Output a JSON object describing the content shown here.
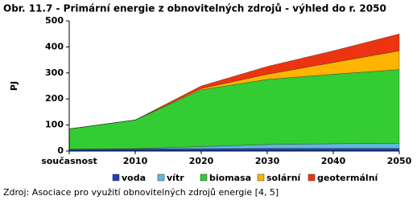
{
  "chart_data": {
    "type": "stacked-area",
    "title": "Obr. 11.7 - Primární energie z obnovitelných zdrojů - výhled do r. 2050",
    "y_label": "PJ",
    "categories": [
      "současnost",
      "2010",
      "2020",
      "2030",
      "2040",
      "2050"
    ],
    "series": [
      {
        "name": "voda",
        "color": "#1f3fbf",
        "values": [
          7,
          8,
          9,
          10,
          10,
          10
        ]
      },
      {
        "name": "vítr",
        "color": "#5fb8d8",
        "values": [
          0,
          1,
          8,
          15,
          18,
          20
        ]
      },
      {
        "name": "biomasa",
        "color": "#33cc33",
        "values": [
          78,
          110,
          218,
          250,
          267,
          283
        ]
      },
      {
        "name": "solární",
        "color": "#ffb400",
        "values": [
          0,
          0.5,
          5,
          20,
          45,
          72
        ]
      },
      {
        "name": "geotermální",
        "color": "#ee3311",
        "values": [
          0,
          0,
          10,
          30,
          45,
          65
        ]
      }
    ],
    "ylim": [
      0,
      500
    ],
    "yticks": [
      0,
      100,
      200,
      300,
      400,
      500
    ],
    "source": "Zdroj: Asociace pro využití obnovitelných zdrojů energie [4, 5]"
  }
}
